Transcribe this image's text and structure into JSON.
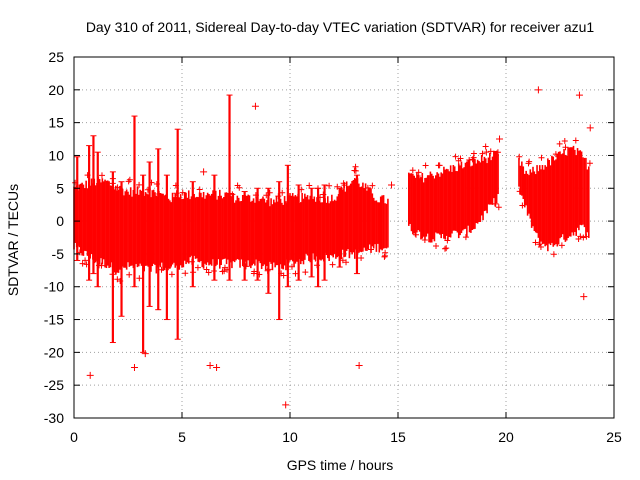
{
  "chart_data": {
    "type": "scatter",
    "title": "Day 310 of 2011, Sidereal Day-to-day VTEC variation (SDTVAR) for receiver azu1",
    "xlabel": "GPS time / hours",
    "ylabel": "SDTVAR / TECUs",
    "xlim": [
      0,
      25
    ],
    "ylim": [
      -30,
      25
    ],
    "xticks": [
      "0",
      "5",
      "10",
      "15",
      "20",
      "25"
    ],
    "yticks": [
      "25",
      "20",
      "15",
      "10",
      "5",
      "0",
      "-5",
      "-10",
      "-15",
      "-20",
      "-25",
      "-30"
    ],
    "grid": true,
    "marker": "+",
    "color": "#ff0000",
    "series": [
      {
        "name": "SDTVAR",
        "envelope": [
          {
            "x": 0.0,
            "lo": -4,
            "hi": 5
          },
          {
            "x": 0.5,
            "lo": -5,
            "hi": 5.5
          },
          {
            "x": 1.0,
            "lo": -6,
            "hi": 6
          },
          {
            "x": 1.5,
            "lo": -6.5,
            "hi": 6
          },
          {
            "x": 2.0,
            "lo": -7.5,
            "hi": 5
          },
          {
            "x": 2.5,
            "lo": -7,
            "hi": 4.5
          },
          {
            "x": 3.0,
            "lo": -7,
            "hi": 4.5
          },
          {
            "x": 3.5,
            "lo": -7.5,
            "hi": 4.5
          },
          {
            "x": 4.0,
            "lo": -7,
            "hi": 4
          },
          {
            "x": 4.5,
            "lo": -7,
            "hi": 3.5
          },
          {
            "x": 5.0,
            "lo": -6.5,
            "hi": 4
          },
          {
            "x": 5.5,
            "lo": -6,
            "hi": 4
          },
          {
            "x": 6.0,
            "lo": -6.5,
            "hi": 4
          },
          {
            "x": 6.5,
            "lo": -6.5,
            "hi": 4
          },
          {
            "x": 7.0,
            "lo": -6.5,
            "hi": 4
          },
          {
            "x": 7.5,
            "lo": -6.5,
            "hi": 3.5
          },
          {
            "x": 8.0,
            "lo": -6.5,
            "hi": 3.5
          },
          {
            "x": 8.5,
            "lo": -6.5,
            "hi": 3.5
          },
          {
            "x": 9.0,
            "lo": -7,
            "hi": 3
          },
          {
            "x": 9.5,
            "lo": -7,
            "hi": 3
          },
          {
            "x": 10.0,
            "lo": -6.5,
            "hi": 3.5
          },
          {
            "x": 10.5,
            "lo": -6,
            "hi": 3.5
          },
          {
            "x": 11.0,
            "lo": -5.5,
            "hi": 3.5
          },
          {
            "x": 11.5,
            "lo": -5.5,
            "hi": 3.5
          },
          {
            "x": 12.0,
            "lo": -5.5,
            "hi": 3.5
          },
          {
            "x": 12.5,
            "lo": -5,
            "hi": 5
          },
          {
            "x": 13.0,
            "lo": -5,
            "hi": 6.5
          },
          {
            "x": 13.5,
            "lo": -4.5,
            "hi": 5
          },
          {
            "x": 14.0,
            "lo": -4,
            "hi": 3.5
          },
          {
            "x": 14.6,
            "lo": -4,
            "hi": 3
          },
          {
            "x": 15.5,
            "lo": -1,
            "hi": 7
          },
          {
            "x": 16.0,
            "lo": -2,
            "hi": 6.5
          },
          {
            "x": 16.5,
            "lo": -2.5,
            "hi": 7
          },
          {
            "x": 17.0,
            "lo": -2.5,
            "hi": 7.5
          },
          {
            "x": 17.5,
            "lo": -2,
            "hi": 8
          },
          {
            "x": 18.0,
            "lo": -2,
            "hi": 8.5
          },
          {
            "x": 18.5,
            "lo": -1,
            "hi": 9
          },
          {
            "x": 19.0,
            "lo": 1,
            "hi": 9.5
          },
          {
            "x": 19.5,
            "lo": 3,
            "hi": 10
          },
          {
            "x": 19.7,
            "lo": 4,
            "hi": 10
          },
          {
            "x": 20.6,
            "lo": 5,
            "hi": 9
          },
          {
            "x": 21.0,
            "lo": 1,
            "hi": 7
          },
          {
            "x": 21.5,
            "lo": -3,
            "hi": 8
          },
          {
            "x": 22.0,
            "lo": -4,
            "hi": 9
          },
          {
            "x": 22.5,
            "lo": -3,
            "hi": 10
          },
          {
            "x": 23.0,
            "lo": -2,
            "hi": 11
          },
          {
            "x": 23.5,
            "lo": -1,
            "hi": 10
          },
          {
            "x": 23.9,
            "lo": -2,
            "hi": 8
          }
        ],
        "spikes": [
          {
            "x": 0.15,
            "lo": -6,
            "hi": 9.8
          },
          {
            "x": 0.7,
            "lo": -9,
            "hi": 11.5
          },
          {
            "x": 0.9,
            "lo": -8,
            "hi": 13
          },
          {
            "x": 1.1,
            "lo": -10,
            "hi": 10.5
          },
          {
            "x": 1.8,
            "lo": -18.5,
            "hi": 7.5
          },
          {
            "x": 2.2,
            "lo": -14.5,
            "hi": 6
          },
          {
            "x": 2.8,
            "lo": -10,
            "hi": 16
          },
          {
            "x": 3.2,
            "lo": -20,
            "hi": 7
          },
          {
            "x": 3.5,
            "lo": -13,
            "hi": 9
          },
          {
            "x": 3.9,
            "lo": -13.5,
            "hi": 11
          },
          {
            "x": 4.3,
            "lo": -15,
            "hi": 7
          },
          {
            "x": 4.8,
            "lo": -18,
            "hi": 14
          },
          {
            "x": 5.5,
            "lo": -10,
            "hi": 6
          },
          {
            "x": 6.5,
            "lo": -9,
            "hi": 7
          },
          {
            "x": 7.2,
            "lo": -9,
            "hi": 19.2
          },
          {
            "x": 7.9,
            "lo": -9,
            "hi": 4.5
          },
          {
            "x": 8.5,
            "lo": -9,
            "hi": 5
          },
          {
            "x": 9.0,
            "lo": -11,
            "hi": 5
          },
          {
            "x": 9.5,
            "lo": -15,
            "hi": 6
          },
          {
            "x": 9.9,
            "lo": -10,
            "hi": 8.5
          },
          {
            "x": 10.4,
            "lo": -9,
            "hi": 5.5
          },
          {
            "x": 11.0,
            "lo": -8.5,
            "hi": 5
          },
          {
            "x": 11.3,
            "lo": -10,
            "hi": 5
          },
          {
            "x": 11.6,
            "lo": -9,
            "hi": 5.5
          },
          {
            "x": 12.3,
            "lo": -7,
            "hi": 5
          },
          {
            "x": 13.1,
            "lo": -8,
            "hi": 7
          }
        ],
        "outliers": [
          {
            "x": 0.75,
            "y": -23.5
          },
          {
            "x": 2.8,
            "y": -22.3
          },
          {
            "x": 3.3,
            "y": -20.2
          },
          {
            "x": 6.3,
            "y": -22
          },
          {
            "x": 6.6,
            "y": -22.3
          },
          {
            "x": 6.0,
            "y": 7.5
          },
          {
            "x": 8.4,
            "y": 17.5
          },
          {
            "x": 9.8,
            "y": -28
          },
          {
            "x": 13.2,
            "y": -22
          },
          {
            "x": 14.7,
            "y": 5.5
          },
          {
            "x": 19.7,
            "y": 12.5
          },
          {
            "x": 21.5,
            "y": 20
          },
          {
            "x": 23.4,
            "y": 19.2
          },
          {
            "x": 23.6,
            "y": -11.5
          },
          {
            "x": 23.9,
            "y": 14.2
          }
        ]
      }
    ]
  }
}
